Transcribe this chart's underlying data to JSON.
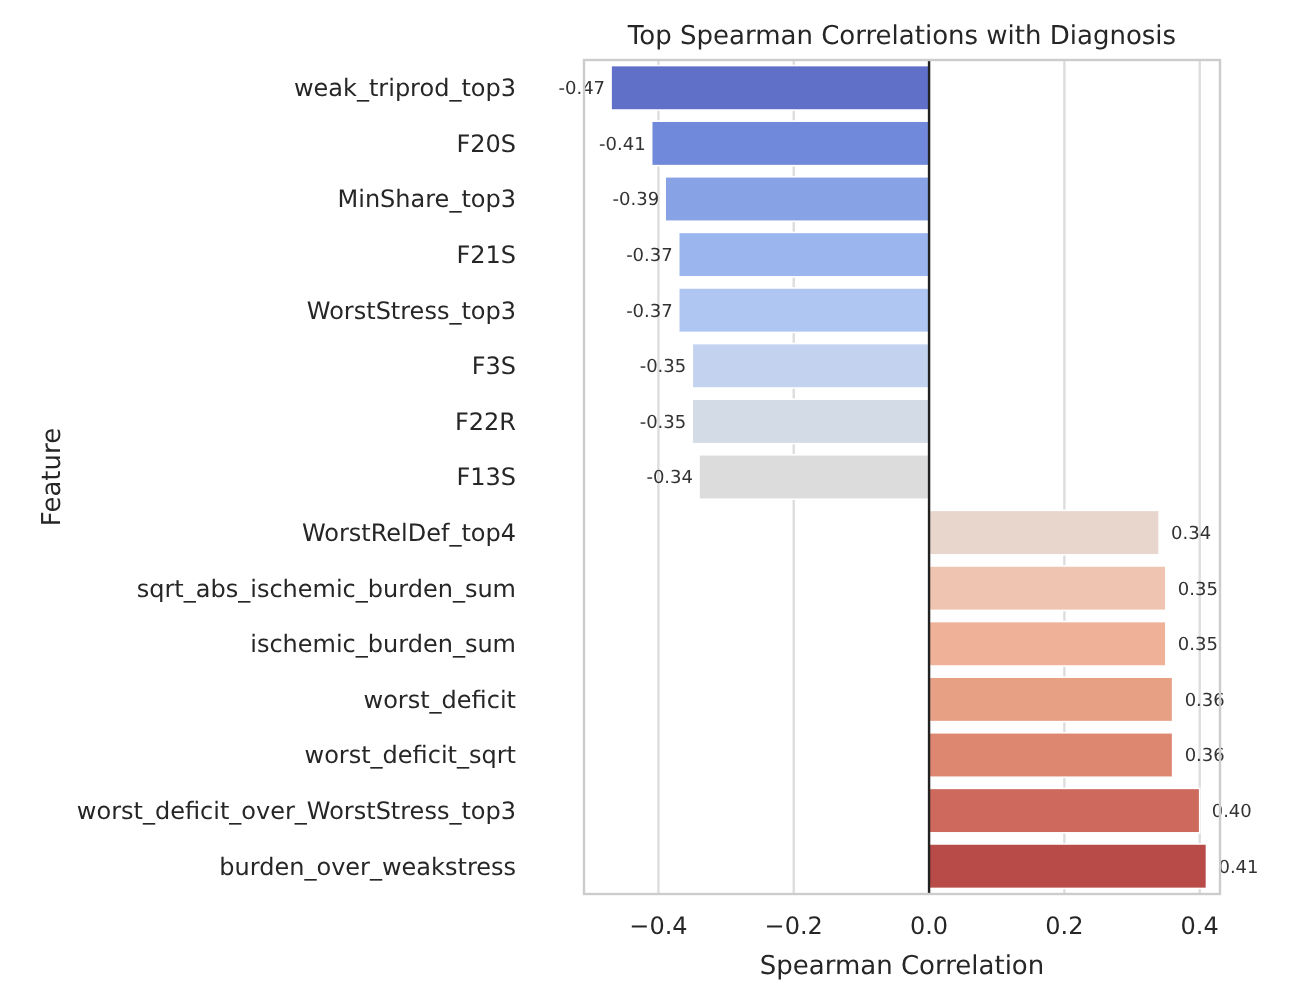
{
  "chart_data": {
    "type": "bar",
    "orientation": "horizontal",
    "title": "Top Spearman Correlations with Diagnosis",
    "xlabel": "Spearman Correlation",
    "ylabel": "Feature",
    "categories": [
      "weak_triprod_top3",
      "F20S",
      "MinShare_top3",
      "F21S",
      "WorstStress_top3",
      "F3S",
      "F22R",
      "F13S",
      "WorstRelDef_top4",
      "sqrt_abs_ischemic_burden_sum",
      "ischemic_burden_sum",
      "worst_deficit",
      "worst_deficit_sqrt",
      "worst_deficit_over_WorstStress_top3",
      "burden_over_weakstress"
    ],
    "values": [
      -0.47,
      -0.41,
      -0.39,
      -0.37,
      -0.37,
      -0.35,
      -0.35,
      -0.34,
      0.34,
      0.35,
      0.35,
      0.36,
      0.36,
      0.4,
      0.41
    ],
    "colors": [
      "#6070c9",
      "#7189da",
      "#87a3e6",
      "#9bb6ef",
      "#afc6f2",
      "#c3d3ef",
      "#d3dbe7",
      "#dddcdc",
      "#e8d5cb",
      "#efc5b1",
      "#efb197",
      "#e8a085",
      "#dd8670",
      "#cd6a5d",
      "#b84a47"
    ],
    "value_labels": [
      "-0.47",
      "-0.41",
      "-0.39",
      "-0.37",
      "-0.37",
      "-0.35",
      "-0.35",
      "-0.34",
      "0.34",
      "0.35",
      "0.35",
      "0.36",
      "0.36",
      "0.40",
      "0.41"
    ],
    "xlim": [
      -0.51,
      0.43
    ],
    "xticks": [
      {
        "value": -0.4,
        "label": "−0.4"
      },
      {
        "value": -0.2,
        "label": "−0.2"
      },
      {
        "value": 0,
        "label": "0.0"
      },
      {
        "value": 0.2,
        "label": "0.2"
      },
      {
        "value": 0.4,
        "label": "0.4"
      }
    ],
    "grid": "x",
    "ref_lines": [
      {
        "axis": "x",
        "value": 0,
        "color": "#222222"
      }
    ]
  }
}
